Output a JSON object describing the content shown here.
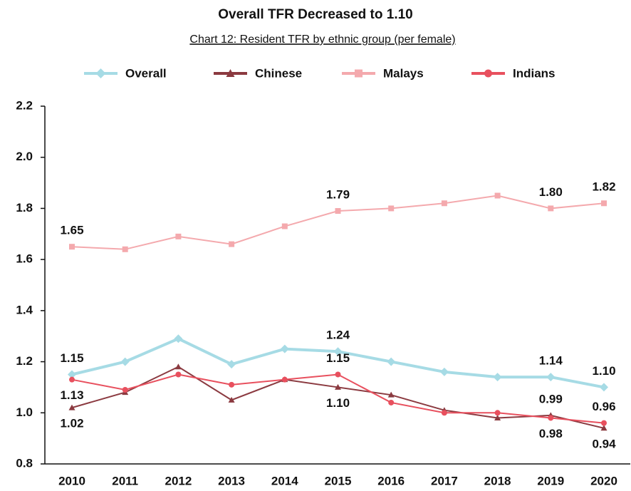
{
  "chart_data": {
    "type": "line",
    "title": "Overall TFR Decreased to 1.10",
    "subtitle": "Chart 12: Resident TFR by ethnic group (per female)",
    "categories": [
      "2010",
      "2011",
      "2012",
      "2013",
      "2014",
      "2015",
      "2016",
      "2017",
      "2018",
      "2019",
      "2020"
    ],
    "series": [
      {
        "name": "Overall",
        "color": "#a6dbe5",
        "marker": "diamond",
        "values": [
          1.15,
          1.2,
          1.29,
          1.19,
          1.25,
          1.24,
          1.2,
          1.16,
          1.14,
          1.14,
          1.1
        ],
        "value_labels": [
          "1.15",
          null,
          null,
          null,
          null,
          "1.24",
          null,
          null,
          null,
          "1.14",
          "1.10"
        ]
      },
      {
        "name": "Chinese",
        "color": "#8b3a40",
        "marker": "triangle",
        "values": [
          1.02,
          1.08,
          1.18,
          1.05,
          1.13,
          1.1,
          1.07,
          1.01,
          0.98,
          0.99,
          0.94
        ],
        "value_labels": [
          "1.02",
          null,
          null,
          null,
          null,
          "1.10",
          null,
          null,
          null,
          "0.99",
          "0.94"
        ]
      },
      {
        "name": "Malays",
        "color": "#f4a9ad",
        "marker": "square",
        "values": [
          1.65,
          1.64,
          1.69,
          1.66,
          1.73,
          1.79,
          1.8,
          1.82,
          1.85,
          1.8,
          1.82
        ],
        "value_labels": [
          "1.65",
          null,
          null,
          null,
          null,
          "1.79",
          null,
          null,
          null,
          "1.80",
          "1.82"
        ]
      },
      {
        "name": "Indians",
        "color": "#e8505e",
        "marker": "circle",
        "values": [
          1.13,
          1.09,
          1.15,
          1.11,
          1.13,
          1.15,
          1.04,
          1.0,
          1.0,
          0.98,
          0.96
        ],
        "value_labels": [
          "1.13",
          null,
          null,
          null,
          null,
          "1.15",
          null,
          null,
          null,
          "0.98",
          "0.96"
        ]
      }
    ],
    "ylim": [
      0.8,
      2.2
    ],
    "yticks": [
      0.8,
      {
        "value": 1,
        "label": "1.0"
      },
      1.2,
      1.4,
      1.6,
      1.8,
      {
        "value": 2,
        "label": "2.0"
      },
      2.2
    ],
    "grid": false,
    "legend": "top"
  }
}
